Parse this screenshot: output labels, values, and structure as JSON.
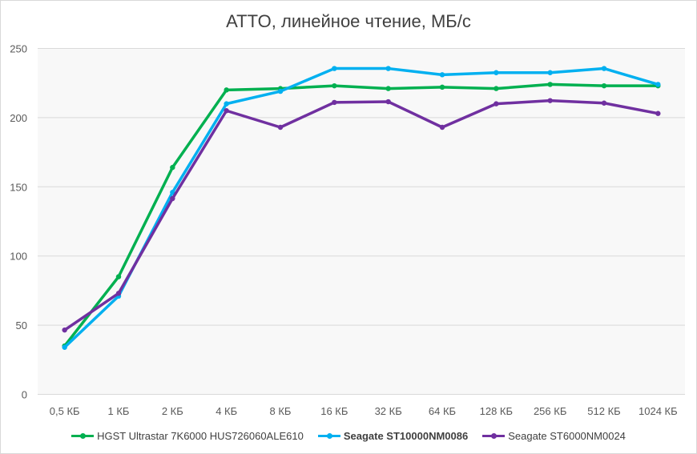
{
  "chart_data": {
    "type": "line",
    "title": "ATTO, линейное чтение, МБ/с",
    "xlabel": "",
    "ylabel": "",
    "ylim": [
      0,
      250
    ],
    "yticks": [
      0,
      50,
      100,
      150,
      200,
      250
    ],
    "grid": true,
    "legend_position": "bottom",
    "categories": [
      "0,5 КБ",
      "1 КБ",
      "2 КБ",
      "4 КБ",
      "8 КБ",
      "16 КБ",
      "32 КБ",
      "64 КБ",
      "128 КБ",
      "256 КБ",
      "512 КБ",
      "1024 КБ"
    ],
    "series": [
      {
        "name": "HGST Ultrastar 7K6000 HUS726060ALE610",
        "color": "#00b050",
        "bold": false,
        "values": [
          35,
          85,
          164,
          220,
          221,
          223,
          221,
          222,
          221,
          224,
          223,
          223
        ]
      },
      {
        "name": "Seagate ST10000NM0086",
        "color": "#00b0f0",
        "bold": true,
        "values": [
          34,
          71,
          146,
          210,
          219,
          235.5,
          235.5,
          231,
          232.5,
          232.5,
          235.5,
          224
        ]
      },
      {
        "name": "Seagate ST6000NM0024",
        "color": "#7030a0",
        "bold": false,
        "values": [
          46.5,
          73,
          141.5,
          205,
          193,
          211,
          211.5,
          193,
          210,
          212.3,
          210.5,
          203
        ]
      }
    ]
  }
}
